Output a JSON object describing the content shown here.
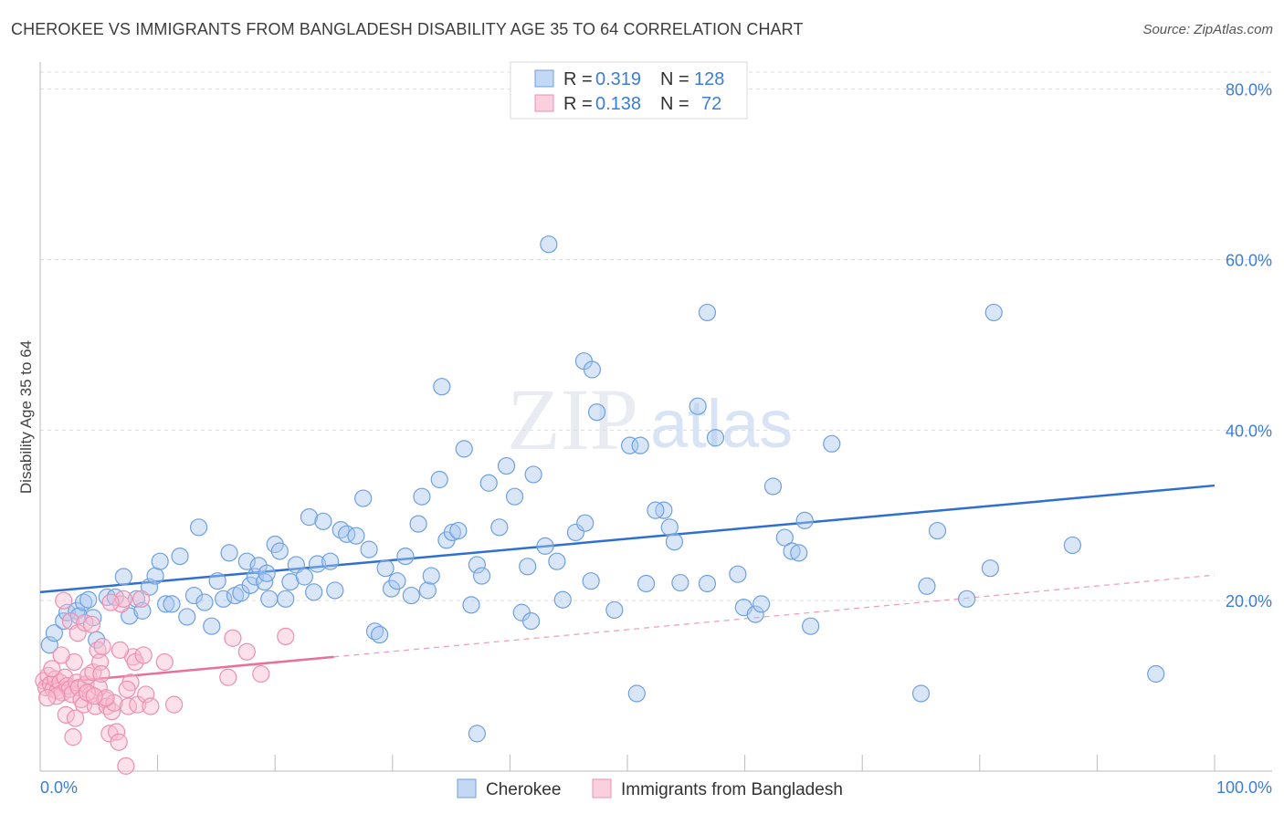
{
  "title": "CHEROKEE VS IMMIGRANTS FROM BANGLADESH DISABILITY AGE 35 TO 64 CORRELATION CHART",
  "source": "Source: ZipAtlas.com",
  "watermark": {
    "part1": "ZIP",
    "part2": "atlas"
  },
  "legend": {
    "rows": [
      {
        "r_label": "R = ",
        "r_value": "0.319",
        "n_label": "N = ",
        "n_value": "128",
        "color": "#a8c8f0",
        "stroke": "#6fa0e0"
      },
      {
        "r_label": "R = ",
        "r_value": "0.138",
        "n_label": "N = ",
        "n_value": "72",
        "color": "#f8bcd0",
        "stroke": "#ec8fb0"
      }
    ]
  },
  "bottom_legend": [
    {
      "label": "Cherokee",
      "color": "#a8c8f0",
      "stroke": "#6fa0e0"
    },
    {
      "label": "Immigrants from Bangladesh",
      "color": "#f8bcd0",
      "stroke": "#ec8fb0"
    }
  ],
  "chart_data": {
    "type": "scatter",
    "title": "CHEROKEE VS IMMIGRANTS FROM BANGLADESH DISABILITY AGE 35 TO 64 CORRELATION CHART",
    "xlabel": "",
    "ylabel": "Disability Age 35 to 64",
    "xlim": [
      0,
      100
    ],
    "ylim": [
      0,
      82
    ],
    "x_tick_labels": [
      "0.0%",
      "100.0%"
    ],
    "y_ticks": [
      20,
      40,
      60,
      80
    ],
    "y_tick_labels": [
      "20.0%",
      "40.0%",
      "60.0%",
      "80.0%"
    ],
    "grid": true,
    "series": [
      {
        "name": "Cherokee",
        "color": "#a8c8f0",
        "stroke": "#6fa0e0",
        "trend": {
          "x0": 0,
          "y0": 21.0,
          "x1": 100,
          "y1": 33.5,
          "color": "#2f6fcf",
          "dashed": false
        },
        "points": [
          [
            0.8,
            14.8
          ],
          [
            1.2,
            16.2
          ],
          [
            2.0,
            17.6
          ],
          [
            2.3,
            18.6
          ],
          [
            3.1,
            18.8
          ],
          [
            3.3,
            18.2
          ],
          [
            3.7,
            19.8
          ],
          [
            4.1,
            20.1
          ],
          [
            4.5,
            18.0
          ],
          [
            4.8,
            15.4
          ],
          [
            5.7,
            20.4
          ],
          [
            6.4,
            20.4
          ],
          [
            7.1,
            22.8
          ],
          [
            7.6,
            18.2
          ],
          [
            8.2,
            20.2
          ],
          [
            8.7,
            18.8
          ],
          [
            9.3,
            21.6
          ],
          [
            9.8,
            22.9
          ],
          [
            10.2,
            24.6
          ],
          [
            10.7,
            19.6
          ],
          [
            11.2,
            19.6
          ],
          [
            11.9,
            25.2
          ],
          [
            12.5,
            18.1
          ],
          [
            13.1,
            20.6
          ],
          [
            13.5,
            28.6
          ],
          [
            14.0,
            19.8
          ],
          [
            14.6,
            17.0
          ],
          [
            15.1,
            22.3
          ],
          [
            15.6,
            20.2
          ],
          [
            16.1,
            25.6
          ],
          [
            16.6,
            20.6
          ],
          [
            17.1,
            20.9
          ],
          [
            17.6,
            24.6
          ],
          [
            17.9,
            21.8
          ],
          [
            18.3,
            22.8
          ],
          [
            18.6,
            24.1
          ],
          [
            19.1,
            22.2
          ],
          [
            19.5,
            20.2
          ],
          [
            20.0,
            26.6
          ],
          [
            20.4,
            25.8
          ],
          [
            20.9,
            20.2
          ],
          [
            21.3,
            22.2
          ],
          [
            21.8,
            24.2
          ],
          [
            22.5,
            22.8
          ],
          [
            22.9,
            29.8
          ],
          [
            23.6,
            24.3
          ],
          [
            24.1,
            29.3
          ],
          [
            24.7,
            24.6
          ],
          [
            25.1,
            21.2
          ],
          [
            25.6,
            28.3
          ],
          [
            26.1,
            27.8
          ],
          [
            26.9,
            27.6
          ],
          [
            27.5,
            32.0
          ],
          [
            28.0,
            26.0
          ],
          [
            28.5,
            16.4
          ],
          [
            28.9,
            16.0
          ],
          [
            29.4,
            23.8
          ],
          [
            29.9,
            21.4
          ],
          [
            30.4,
            22.3
          ],
          [
            31.1,
            25.2
          ],
          [
            31.6,
            20.6
          ],
          [
            32.2,
            29.0
          ],
          [
            32.5,
            32.2
          ],
          [
            33.0,
            21.2
          ],
          [
            33.3,
            22.9
          ],
          [
            34.0,
            34.2
          ],
          [
            34.6,
            27.1
          ],
          [
            35.1,
            28.0
          ],
          [
            35.6,
            28.2
          ],
          [
            36.1,
            37.8
          ],
          [
            36.7,
            19.5
          ],
          [
            37.2,
            24.2
          ],
          [
            37.6,
            22.9
          ],
          [
            38.2,
            33.8
          ],
          [
            39.1,
            28.6
          ],
          [
            39.7,
            35.8
          ],
          [
            40.4,
            32.2
          ],
          [
            41.0,
            18.6
          ],
          [
            41.5,
            24.0
          ],
          [
            42.0,
            34.8
          ],
          [
            43.0,
            26.4
          ],
          [
            44.0,
            24.6
          ],
          [
            44.5,
            20.1
          ],
          [
            45.6,
            28.0
          ],
          [
            46.4,
            29.1
          ],
          [
            46.9,
            22.3
          ],
          [
            47.4,
            42.1
          ],
          [
            48.9,
            18.9
          ],
          [
            50.2,
            38.2
          ],
          [
            51.1,
            38.2
          ],
          [
            51.6,
            22.0
          ],
          [
            53.1,
            30.6
          ],
          [
            53.6,
            28.6
          ],
          [
            54.0,
            26.9
          ],
          [
            54.5,
            22.1
          ],
          [
            56.0,
            42.8
          ],
          [
            57.5,
            39.1
          ],
          [
            59.4,
            23.1
          ],
          [
            59.9,
            19.2
          ],
          [
            60.9,
            18.4
          ],
          [
            61.4,
            19.6
          ],
          [
            62.4,
            33.4
          ],
          [
            63.4,
            27.4
          ],
          [
            64.0,
            25.8
          ],
          [
            64.6,
            25.6
          ],
          [
            65.1,
            29.4
          ],
          [
            65.6,
            17.0
          ],
          [
            67.4,
            38.4
          ],
          [
            75.5,
            21.7
          ],
          [
            76.4,
            28.2
          ],
          [
            78.9,
            20.2
          ],
          [
            80.9,
            23.8
          ],
          [
            87.9,
            26.5
          ],
          [
            46.3,
            48.1
          ],
          [
            47.0,
            47.1
          ],
          [
            56.8,
            53.8
          ],
          [
            34.2,
            45.1
          ],
          [
            81.2,
            53.8
          ],
          [
            43.3,
            61.8
          ],
          [
            52.4,
            30.6
          ],
          [
            37.2,
            4.4
          ],
          [
            50.8,
            9.1
          ],
          [
            75.0,
            9.1
          ],
          [
            95.0,
            11.4
          ],
          [
            56.8,
            22.0
          ],
          [
            41.8,
            17.6
          ],
          [
            23.3,
            21.0
          ],
          [
            19.3,
            23.2
          ]
        ]
      },
      {
        "name": "Immigrants from Bangladesh",
        "color": "#f8bcd0",
        "stroke": "#ec8fb0",
        "trend": {
          "x0": 0,
          "y0": 10.2,
          "x1": 25.0,
          "y1": 13.4,
          "color": "#e8709a",
          "dashed": false
        },
        "trend_ext": {
          "x0": 25.0,
          "y0": 13.4,
          "x1": 100,
          "y1": 23.0,
          "color": "#f0a0bc",
          "dashed": true
        },
        "points": [
          [
            0.3,
            10.6
          ],
          [
            0.5,
            9.8
          ],
          [
            0.7,
            11.2
          ],
          [
            0.9,
            10.2
          ],
          [
            1.1,
            9.6
          ],
          [
            1.3,
            10.8
          ],
          [
            1.5,
            9.4
          ],
          [
            1.7,
            10.4
          ],
          [
            1.9,
            9.2
          ],
          [
            2.1,
            11.0
          ],
          [
            2.3,
            10.0
          ],
          [
            2.5,
            9.6
          ],
          [
            2.7,
            9.0
          ],
          [
            2.9,
            12.8
          ],
          [
            3.1,
            10.4
          ],
          [
            3.3,
            9.8
          ],
          [
            3.5,
            8.4
          ],
          [
            3.7,
            7.8
          ],
          [
            3.9,
            10.2
          ],
          [
            4.1,
            11.2
          ],
          [
            4.3,
            9.0
          ],
          [
            4.5,
            11.6
          ],
          [
            4.7,
            7.6
          ],
          [
            4.9,
            14.2
          ],
          [
            5.1,
            12.8
          ],
          [
            5.3,
            14.6
          ],
          [
            5.5,
            8.4
          ],
          [
            5.7,
            7.6
          ],
          [
            5.9,
            4.4
          ],
          [
            6.1,
            7.0
          ],
          [
            6.3,
            8.0
          ],
          [
            6.5,
            4.6
          ],
          [
            6.7,
            3.4
          ],
          [
            6.9,
            19.6
          ],
          [
            7.1,
            20.2
          ],
          [
            7.3,
            0.6
          ],
          [
            7.5,
            7.6
          ],
          [
            7.7,
            10.4
          ],
          [
            7.9,
            13.4
          ],
          [
            8.1,
            12.8
          ],
          [
            8.3,
            7.8
          ],
          [
            8.6,
            20.2
          ],
          [
            9.0,
            9.0
          ],
          [
            9.4,
            7.6
          ],
          [
            10.6,
            12.8
          ],
          [
            11.4,
            7.8
          ],
          [
            16.4,
            15.6
          ],
          [
            16.0,
            11.0
          ],
          [
            17.6,
            14.0
          ],
          [
            18.8,
            11.4
          ],
          [
            20.9,
            15.8
          ],
          [
            2.0,
            20.0
          ],
          [
            2.6,
            17.6
          ],
          [
            3.2,
            16.2
          ],
          [
            3.8,
            17.4
          ],
          [
            4.4,
            17.2
          ],
          [
            5.0,
            9.8
          ],
          [
            5.6,
            8.6
          ],
          [
            6.0,
            19.8
          ],
          [
            1.0,
            12.0
          ],
          [
            1.4,
            8.8
          ],
          [
            1.8,
            13.6
          ],
          [
            2.2,
            6.6
          ],
          [
            2.8,
            4.0
          ],
          [
            3.0,
            6.2
          ],
          [
            4.0,
            9.2
          ],
          [
            4.6,
            8.8
          ],
          [
            5.2,
            11.4
          ],
          [
            6.8,
            14.2
          ],
          [
            7.4,
            9.6
          ],
          [
            8.8,
            13.6
          ],
          [
            0.6,
            8.6
          ]
        ]
      }
    ]
  }
}
